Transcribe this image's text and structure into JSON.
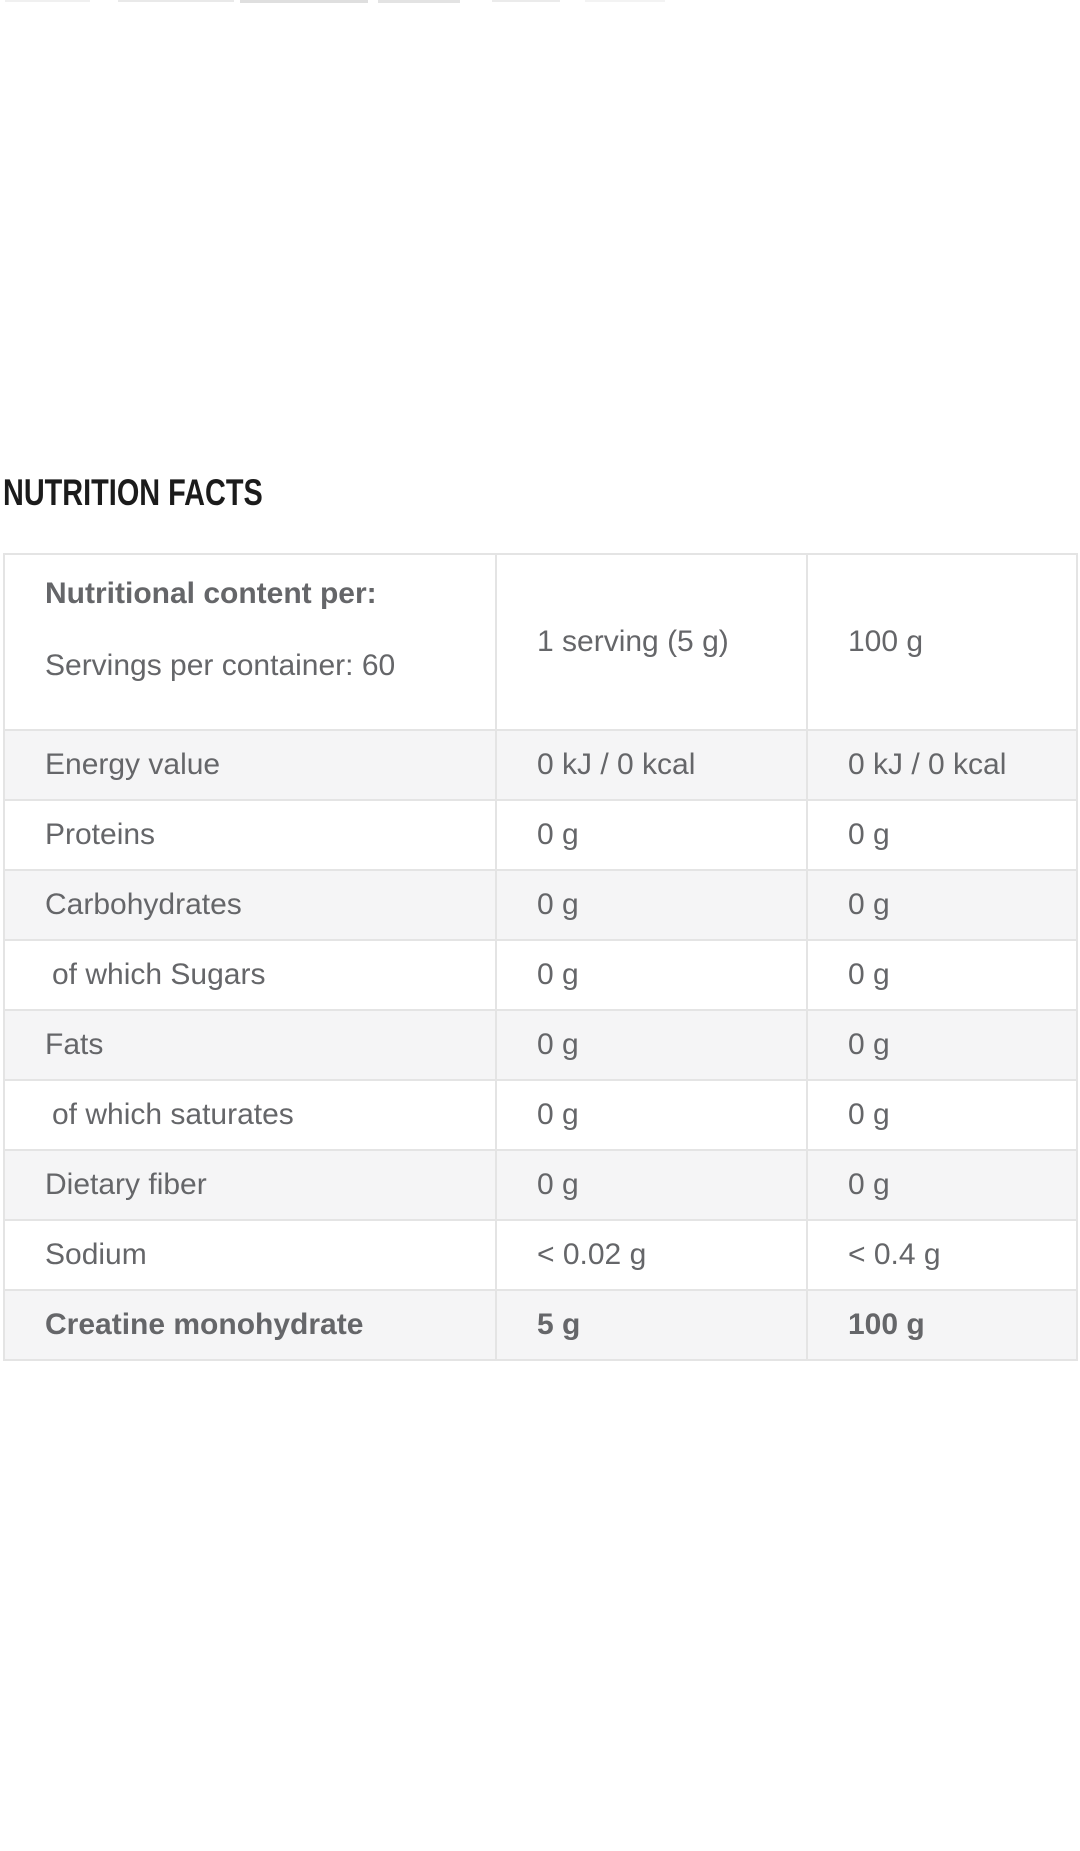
{
  "page": {
    "section_title": "NUTRITION FACTS"
  },
  "colors": {
    "page_bg": "#ffffff",
    "heading_text": "#1b1b1b",
    "table_text": "#656669",
    "table_border": "#e4e4e4",
    "shaded_row_bg": "#f5f5f6"
  },
  "table": {
    "header": {
      "col1_line1": "Nutritional content per:",
      "col1_line2": "Servings per container: 60",
      "col2": "1 serving (5 g)",
      "col3": "100 g"
    },
    "rows": [
      {
        "label": "Energy value",
        "per_serving": "0 kJ / 0 kcal",
        "per_100g": "0 kJ / 0 kcal",
        "shaded": true,
        "indent": false,
        "bold": false
      },
      {
        "label": "Proteins",
        "per_serving": "0 g",
        "per_100g": "0 g",
        "shaded": false,
        "indent": false,
        "bold": false
      },
      {
        "label": "Carbohydrates",
        "per_serving": "0 g",
        "per_100g": "0 g",
        "shaded": true,
        "indent": false,
        "bold": false
      },
      {
        "label": "of which Sugars",
        "per_serving": "0 g",
        "per_100g": "0 g",
        "shaded": false,
        "indent": true,
        "bold": false
      },
      {
        "label": "Fats",
        "per_serving": "0 g",
        "per_100g": "0 g",
        "shaded": true,
        "indent": false,
        "bold": false
      },
      {
        "label": "of which saturates",
        "per_serving": "0 g",
        "per_100g": "0 g",
        "shaded": false,
        "indent": true,
        "bold": false
      },
      {
        "label": "Dietary fiber",
        "per_serving": "0 g",
        "per_100g": "0 g",
        "shaded": true,
        "indent": false,
        "bold": false
      },
      {
        "label": "Sodium",
        "per_serving": "< 0.02 g",
        "per_100g": "< 0.4 g",
        "shaded": false,
        "indent": false,
        "bold": false
      },
      {
        "label": "Creatine monohydrate",
        "per_serving": "5 g",
        "per_100g": "100 g",
        "shaded": true,
        "indent": false,
        "bold": true
      }
    ]
  }
}
